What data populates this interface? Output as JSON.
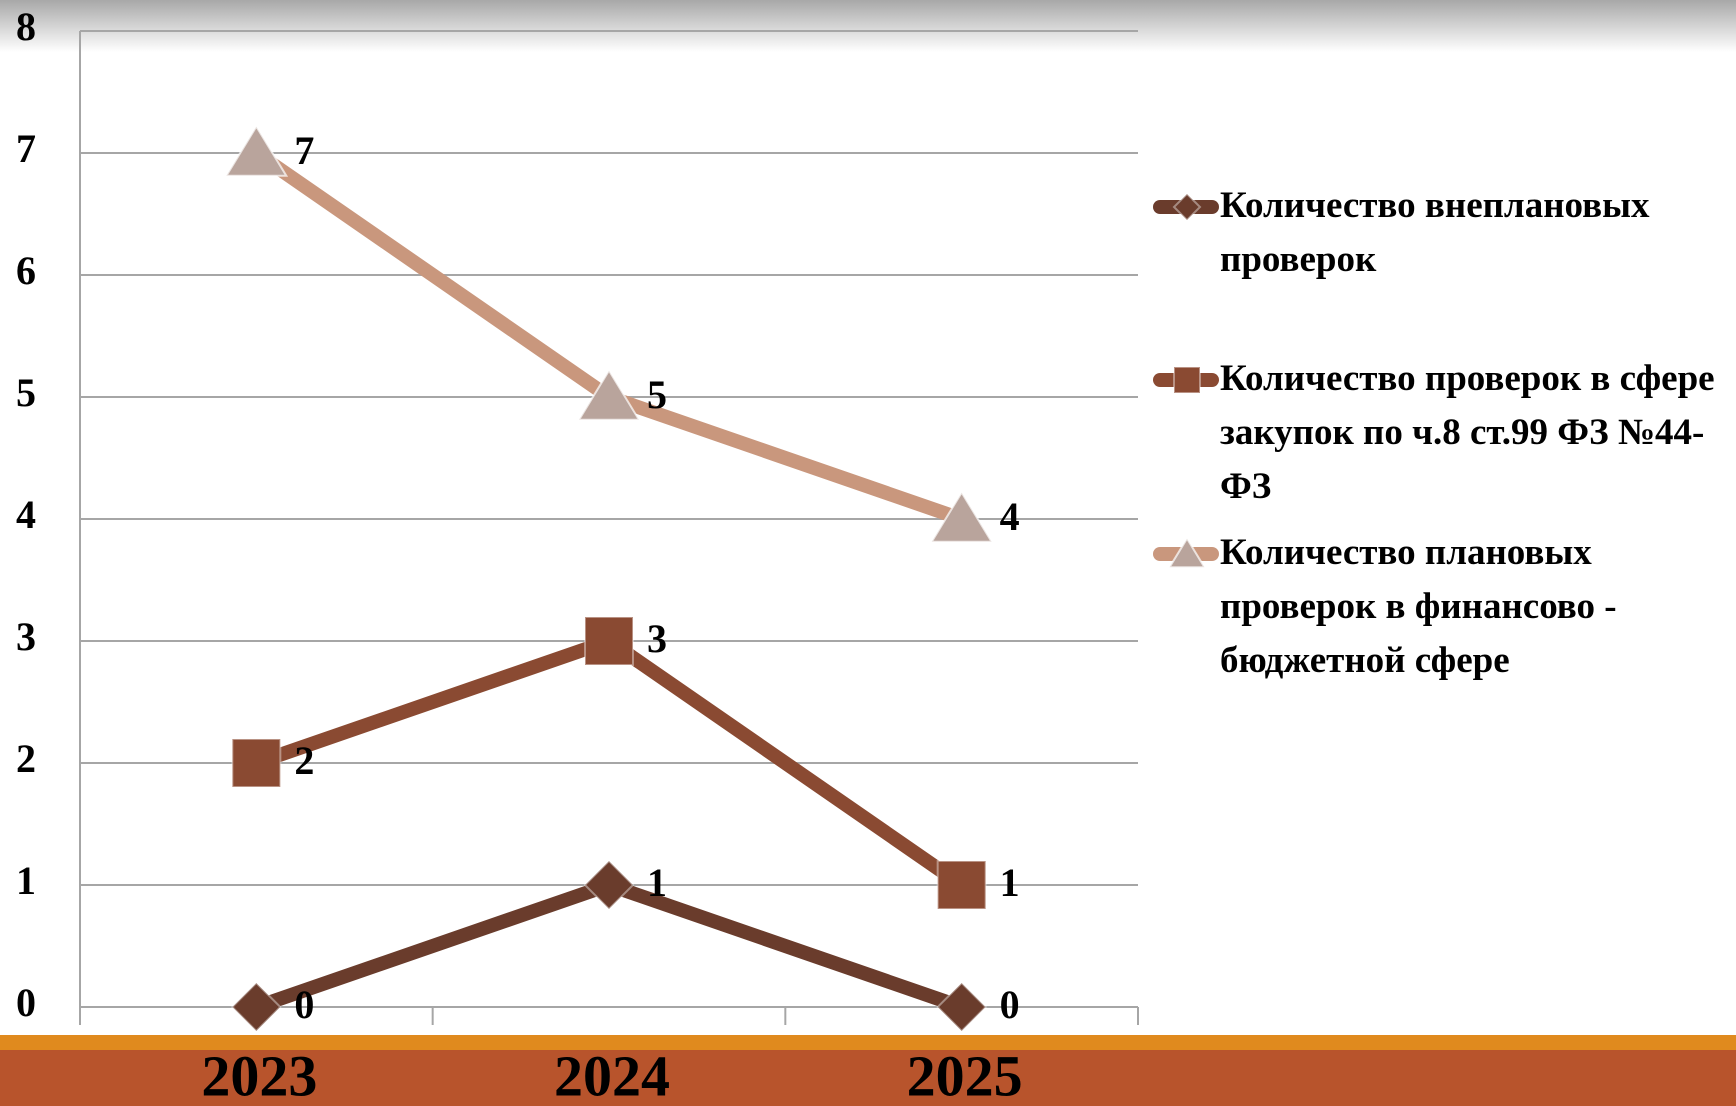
{
  "chart_data": {
    "type": "line",
    "categories": [
      "2023",
      "2024",
      "2025"
    ],
    "series": [
      {
        "name": "Количество внеплановых проверок",
        "color": "#6a3c2c",
        "marker": "diamond",
        "values": [
          0,
          1,
          0
        ]
      },
      {
        "name": "Количество проверок в сфере закупок по ч.8 ст.99 ФЗ №44-ФЗ",
        "color": "#8a4a32",
        "marker": "square",
        "values": [
          2,
          3,
          1
        ]
      },
      {
        "name": "Количество плановых проверок в финансово - бюджетной сфере",
        "color": "#c9977d",
        "marker": "triangle",
        "values": [
          7,
          5,
          4
        ]
      }
    ],
    "ylim": [
      0,
      8
    ],
    "yticks": [
      0,
      1,
      2,
      3,
      4,
      5,
      6,
      7,
      8
    ],
    "grid": true,
    "legend": "right"
  }
}
